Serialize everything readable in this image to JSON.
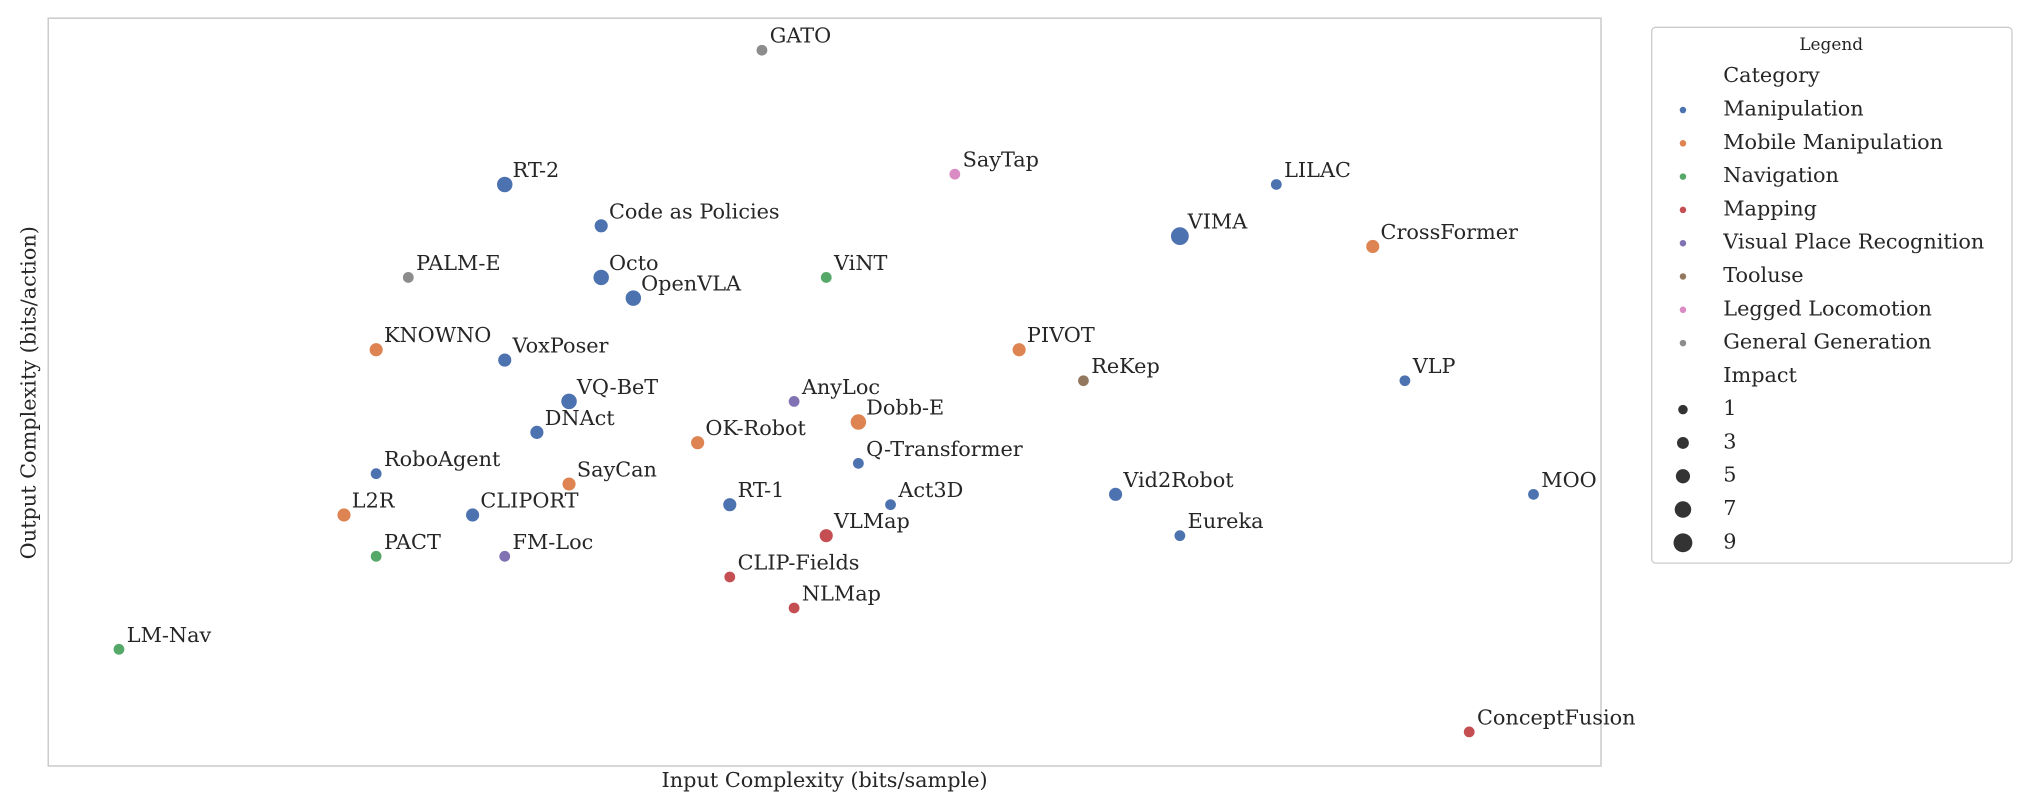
{
  "chart_data": {
    "type": "scatter",
    "x_label": "Input Complexity (bits/sample)",
    "y_label": "Output Complexity (bits/action)",
    "xlim": [
      -2.2,
      46.1
    ],
    "ylim": [
      -3.3,
      69.1
    ],
    "legend": {
      "title": "Legend",
      "hue_title": "Category",
      "size_title": "Impact",
      "size_values": [
        1,
        3,
        5,
        7,
        9
      ],
      "position": "outside right"
    },
    "series": [
      {
        "name": "Manipulation",
        "color": "#4c72b0",
        "labels": [
          "RT-2",
          "LILAC",
          "Code as Policies",
          "VIMA",
          "Octo",
          "OpenVLA",
          "VoxPoser",
          "VLP",
          "VQ-BeT",
          "DNAct",
          "Q-Transformer",
          "RoboAgent",
          "Vid2Robot",
          "MOO",
          "RT-1",
          "Act3D",
          "CLIPORT",
          "Eureka"
        ],
        "x": [
          12,
          36,
          15,
          33,
          15,
          16,
          12,
          40,
          14,
          13,
          23,
          8,
          31,
          44,
          19,
          24,
          11,
          33
        ],
        "y": [
          53,
          53,
          49,
          48,
          44,
          42,
          36,
          34,
          32,
          29,
          26,
          25,
          23,
          23,
          22,
          22,
          21,
          19
        ],
        "sizes": [
          7,
          3,
          5,
          9,
          7,
          7,
          5,
          3,
          7,
          5,
          3,
          3,
          5,
          3,
          5,
          3,
          5,
          3
        ]
      },
      {
        "name": "Mobile Manipulation",
        "color": "#dd8452",
        "labels": [
          "CrossFormer",
          "KNOWNO",
          "PIVOT",
          "Dobb-E",
          "OK-Robot",
          "SayCan",
          "L2R"
        ],
        "x": [
          39,
          8,
          28,
          23,
          18,
          14,
          7
        ],
        "y": [
          47,
          37,
          37,
          30,
          28,
          24,
          21
        ],
        "sizes": [
          5,
          5,
          5,
          7,
          5,
          5,
          5
        ]
      },
      {
        "name": "Navigation",
        "color": "#55a868",
        "labels": [
          "ViNT",
          "PACT",
          "LM-Nav"
        ],
        "x": [
          22,
          8,
          0
        ],
        "y": [
          44,
          17,
          8
        ],
        "sizes": [
          3,
          3,
          3
        ]
      },
      {
        "name": "Mapping",
        "color": "#c44e52",
        "labels": [
          "VLMap",
          "CLIP-Fields",
          "NLMap",
          "ConceptFusion"
        ],
        "x": [
          22,
          19,
          21,
          42
        ],
        "y": [
          19,
          15,
          12,
          0
        ],
        "sizes": [
          5,
          3,
          3,
          3
        ]
      },
      {
        "name": "Visual Place Recognition",
        "color": "#8172b3",
        "labels": [
          "AnyLoc",
          "FM-Loc"
        ],
        "x": [
          21,
          12
        ],
        "y": [
          32,
          17
        ],
        "sizes": [
          3,
          3
        ]
      },
      {
        "name": "Tooluse",
        "color": "#937860",
        "labels": [
          "ReKep"
        ],
        "x": [
          30
        ],
        "y": [
          34
        ],
        "sizes": [
          3
        ]
      },
      {
        "name": "Legged Locomotion",
        "color": "#da8bc3",
        "labels": [
          "SayTap"
        ],
        "x": [
          26
        ],
        "y": [
          54
        ],
        "sizes": [
          3
        ]
      },
      {
        "name": "General Generation",
        "color": "#8c8c8c",
        "labels": [
          "GATO",
          "PALM-E"
        ],
        "x": [
          20,
          9
        ],
        "y": [
          66,
          44
        ],
        "sizes": [
          3,
          3
        ]
      }
    ]
  }
}
